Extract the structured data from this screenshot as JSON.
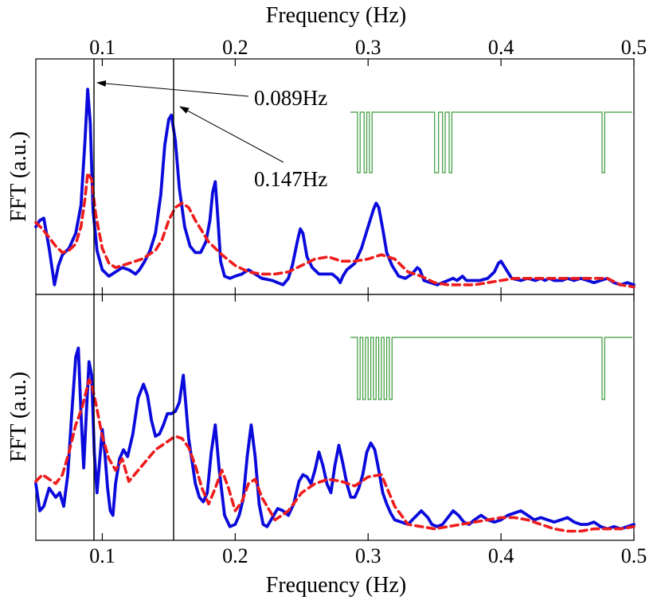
{
  "chart_data": {
    "type": "line",
    "x_axis": {
      "label": "Frequency (Hz)",
      "range": [
        0.05,
        0.5
      ],
      "ticks": [
        0.1,
        0.2,
        0.3,
        0.4,
        0.5
      ],
      "tick_labels": [
        "0.1",
        "0.2",
        "0.3",
        "0.4",
        "0.5"
      ]
    },
    "y_label": "FFT (a.u.)",
    "y_range": [
      0,
      1
    ],
    "vertical_markers": [
      0.089,
      0.147
    ],
    "colors": {
      "solid": "#0a0adc",
      "dashed": "#ee1c1c",
      "inset": "#3a9a3a",
      "axis": "#000000"
    },
    "panels": [
      {
        "name": "top",
        "annotations": [
          {
            "label": "0.089Hz",
            "point_x": 0.089,
            "point_y": 0.95,
            "text_x": 0.21,
            "text_y": 0.93
          },
          {
            "label": "0.147Hz",
            "point_x": 0.155,
            "point_y": 0.76,
            "text_x": 0.21,
            "text_y": 0.56
          }
        ],
        "inset_pulse_train": {
          "baseline": 1,
          "dips": [
            0.292,
            0.294,
            0.297,
            0.299,
            0.301,
            0.303,
            0.35,
            0.353,
            0.356,
            0.358,
            0.361,
            0.363,
            0.476,
            0.478
          ]
        },
        "series": [
          {
            "name": "solid",
            "style": "solid",
            "x": [
              0.05,
              0.053,
              0.056,
              0.06,
              0.064,
              0.067,
              0.07,
              0.075,
              0.08,
              0.084,
              0.087,
              0.089,
              0.091,
              0.093,
              0.096,
              0.1,
              0.105,
              0.11,
              0.115,
              0.12,
              0.125,
              0.128,
              0.132,
              0.136,
              0.14,
              0.144,
              0.147,
              0.15,
              0.152,
              0.155,
              0.158,
              0.162,
              0.166,
              0.17,
              0.174,
              0.178,
              0.181,
              0.183,
              0.185,
              0.187,
              0.189,
              0.192,
              0.196,
              0.2,
              0.205,
              0.21,
              0.215,
              0.22,
              0.228,
              0.232,
              0.236,
              0.24,
              0.243,
              0.247,
              0.249,
              0.251,
              0.254,
              0.258,
              0.263,
              0.268,
              0.273,
              0.277,
              0.279,
              0.281,
              0.284,
              0.29,
              0.295,
              0.3,
              0.304,
              0.306,
              0.308,
              0.311,
              0.314,
              0.318,
              0.323,
              0.328,
              0.333,
              0.337,
              0.339,
              0.342,
              0.347,
              0.352,
              0.356,
              0.36,
              0.364,
              0.367,
              0.369,
              0.371,
              0.374,
              0.378,
              0.384,
              0.39,
              0.395,
              0.398,
              0.4,
              0.403,
              0.408,
              0.415,
              0.42,
              0.426,
              0.43,
              0.433,
              0.436,
              0.44,
              0.446,
              0.45,
              0.455,
              0.46,
              0.465,
              0.47,
              0.475,
              0.48,
              0.485,
              0.49,
              0.495,
              0.5
            ],
            "y": [
              0.3,
              0.33,
              0.34,
              0.2,
              0.03,
              0.12,
              0.17,
              0.2,
              0.27,
              0.4,
              0.7,
              0.94,
              0.78,
              0.38,
              0.19,
              0.1,
              0.07,
              0.09,
              0.11,
              0.1,
              0.08,
              0.1,
              0.14,
              0.19,
              0.27,
              0.45,
              0.68,
              0.8,
              0.82,
              0.7,
              0.48,
              0.3,
              0.21,
              0.18,
              0.18,
              0.23,
              0.33,
              0.46,
              0.51,
              0.34,
              0.14,
              0.07,
              0.06,
              0.07,
              0.08,
              0.1,
              0.08,
              0.06,
              0.05,
              0.04,
              0.03,
              0.06,
              0.12,
              0.24,
              0.29,
              0.27,
              0.16,
              0.11,
              0.08,
              0.08,
              0.08,
              0.06,
              0.04,
              0.07,
              0.1,
              0.13,
              0.2,
              0.3,
              0.38,
              0.41,
              0.39,
              0.29,
              0.18,
              0.12,
              0.07,
              0.06,
              0.08,
              0.11,
              0.1,
              0.05,
              0.04,
              0.03,
              0.04,
              0.05,
              0.06,
              0.05,
              0.06,
              0.07,
              0.05,
              0.05,
              0.05,
              0.06,
              0.09,
              0.13,
              0.14,
              0.11,
              0.06,
              0.05,
              0.06,
              0.05,
              0.06,
              0.05,
              0.06,
              0.05,
              0.05,
              0.06,
              0.05,
              0.06,
              0.05,
              0.04,
              0.05,
              0.06,
              0.04,
              0.03,
              0.04,
              0.03
            ]
          },
          {
            "name": "dashed",
            "style": "dashed",
            "x": [
              0.05,
              0.055,
              0.06,
              0.065,
              0.07,
              0.075,
              0.08,
              0.084,
              0.087,
              0.089,
              0.092,
              0.095,
              0.1,
              0.105,
              0.11,
              0.115,
              0.12,
              0.13,
              0.14,
              0.145,
              0.15,
              0.155,
              0.16,
              0.165,
              0.17,
              0.18,
              0.19,
              0.2,
              0.21,
              0.22,
              0.23,
              0.24,
              0.25,
              0.26,
              0.27,
              0.28,
              0.29,
              0.3,
              0.31,
              0.32,
              0.33,
              0.34,
              0.35,
              0.36,
              0.37,
              0.38,
              0.39,
              0.4,
              0.41,
              0.42,
              0.43,
              0.44,
              0.45,
              0.46,
              0.47,
              0.48,
              0.49,
              0.5
            ],
            "y": [
              0.32,
              0.29,
              0.25,
              0.21,
              0.18,
              0.19,
              0.22,
              0.3,
              0.43,
              0.55,
              0.52,
              0.36,
              0.2,
              0.13,
              0.11,
              0.12,
              0.13,
              0.15,
              0.19,
              0.24,
              0.33,
              0.39,
              0.41,
              0.39,
              0.33,
              0.23,
              0.17,
              0.12,
              0.09,
              0.08,
              0.08,
              0.09,
              0.12,
              0.15,
              0.16,
              0.14,
              0.14,
              0.15,
              0.17,
              0.15,
              0.09,
              0.07,
              0.04,
              0.03,
              0.03,
              0.03,
              0.04,
              0.05,
              0.06,
              0.06,
              0.06,
              0.06,
              0.06,
              0.06,
              0.06,
              0.06,
              0.03,
              0.02
            ]
          }
        ]
      },
      {
        "name": "bottom",
        "annotations": [],
        "inset_pulse_train": {
          "baseline": 1,
          "dips": [
            0.292,
            0.294,
            0.296,
            0.298,
            0.3,
            0.302,
            0.304,
            0.306,
            0.308,
            0.31,
            0.312,
            0.314,
            0.316,
            0.318,
            0.476,
            0.478
          ]
        },
        "series": [
          {
            "name": "solid",
            "style": "solid",
            "x": [
              0.05,
              0.053,
              0.056,
              0.06,
              0.065,
              0.068,
              0.071,
              0.074,
              0.077,
              0.08,
              0.082,
              0.084,
              0.086,
              0.088,
              0.09,
              0.092,
              0.094,
              0.096,
              0.098,
              0.1,
              0.102,
              0.104,
              0.106,
              0.108,
              0.11,
              0.113,
              0.116,
              0.119,
              0.123,
              0.127,
              0.131,
              0.134,
              0.137,
              0.14,
              0.143,
              0.146,
              0.149,
              0.152,
              0.155,
              0.158,
              0.161,
              0.163,
              0.165,
              0.167,
              0.17,
              0.173,
              0.176,
              0.179,
              0.182,
              0.185,
              0.188,
              0.192,
              0.196,
              0.2,
              0.203,
              0.206,
              0.209,
              0.212,
              0.215,
              0.218,
              0.221,
              0.224,
              0.228,
              0.232,
              0.236,
              0.24,
              0.244,
              0.248,
              0.251,
              0.254,
              0.257,
              0.26,
              0.263,
              0.266,
              0.269,
              0.272,
              0.275,
              0.278,
              0.281,
              0.284,
              0.287,
              0.29,
              0.293,
              0.296,
              0.299,
              0.302,
              0.305,
              0.308,
              0.311,
              0.314,
              0.317,
              0.32,
              0.325,
              0.33,
              0.335,
              0.34,
              0.345,
              0.348,
              0.352,
              0.356,
              0.36,
              0.364,
              0.368,
              0.372,
              0.376,
              0.38,
              0.385,
              0.39,
              0.395,
              0.4,
              0.405,
              0.41,
              0.415,
              0.42,
              0.425,
              0.43,
              0.435,
              0.44,
              0.445,
              0.45,
              0.455,
              0.46,
              0.465,
              0.47,
              0.475,
              0.48,
              0.485,
              0.49,
              0.495,
              0.5
            ],
            "y": [
              0.24,
              0.12,
              0.14,
              0.22,
              0.18,
              0.2,
              0.14,
              0.28,
              0.55,
              0.8,
              0.84,
              0.55,
              0.31,
              0.55,
              0.78,
              0.72,
              0.38,
              0.2,
              0.34,
              0.48,
              0.37,
              0.22,
              0.12,
              0.1,
              0.24,
              0.35,
              0.39,
              0.36,
              0.46,
              0.62,
              0.68,
              0.63,
              0.52,
              0.45,
              0.46,
              0.5,
              0.55,
              0.55,
              0.56,
              0.6,
              0.72,
              0.58,
              0.44,
              0.36,
              0.24,
              0.18,
              0.16,
              0.2,
              0.38,
              0.5,
              0.3,
              0.1,
              0.05,
              0.06,
              0.1,
              0.17,
              0.36,
              0.5,
              0.36,
              0.15,
              0.06,
              0.05,
              0.09,
              0.13,
              0.12,
              0.1,
              0.15,
              0.25,
              0.28,
              0.27,
              0.24,
              0.3,
              0.38,
              0.32,
              0.24,
              0.2,
              0.32,
              0.41,
              0.33,
              0.24,
              0.18,
              0.18,
              0.22,
              0.28,
              0.38,
              0.42,
              0.39,
              0.3,
              0.2,
              0.15,
              0.11,
              0.08,
              0.07,
              0.06,
              0.09,
              0.12,
              0.09,
              0.06,
              0.05,
              0.06,
              0.09,
              0.12,
              0.1,
              0.07,
              0.06,
              0.08,
              0.1,
              0.08,
              0.07,
              0.08,
              0.1,
              0.11,
              0.12,
              0.1,
              0.08,
              0.09,
              0.08,
              0.07,
              0.08,
              0.09,
              0.07,
              0.06,
              0.06,
              0.07,
              0.05,
              0.04,
              0.05,
              0.04,
              0.05,
              0.06
            ]
          },
          {
            "name": "dashed",
            "style": "dashed",
            "x": [
              0.05,
              0.055,
              0.06,
              0.065,
              0.07,
              0.075,
              0.08,
              0.085,
              0.09,
              0.092,
              0.095,
              0.1,
              0.105,
              0.11,
              0.115,
              0.12,
              0.13,
              0.14,
              0.15,
              0.155,
              0.16,
              0.165,
              0.17,
              0.175,
              0.18,
              0.185,
              0.19,
              0.195,
              0.2,
              0.205,
              0.21,
              0.215,
              0.22,
              0.23,
              0.24,
              0.25,
              0.26,
              0.27,
              0.28,
              0.29,
              0.3,
              0.31,
              0.32,
              0.33,
              0.34,
              0.35,
              0.36,
              0.37,
              0.38,
              0.39,
              0.4,
              0.41,
              0.42,
              0.43,
              0.44,
              0.45,
              0.46,
              0.47,
              0.48,
              0.49,
              0.5
            ],
            "y": [
              0.25,
              0.28,
              0.26,
              0.24,
              0.28,
              0.38,
              0.5,
              0.58,
              0.7,
              0.68,
              0.6,
              0.45,
              0.35,
              0.3,
              0.35,
              0.25,
              0.32,
              0.39,
              0.43,
              0.45,
              0.44,
              0.4,
              0.32,
              0.22,
              0.15,
              0.22,
              0.3,
              0.22,
              0.12,
              0.16,
              0.24,
              0.26,
              0.18,
              0.08,
              0.12,
              0.2,
              0.24,
              0.26,
              0.25,
              0.23,
              0.27,
              0.28,
              0.14,
              0.06,
              0.05,
              0.04,
              0.05,
              0.06,
              0.07,
              0.08,
              0.09,
              0.09,
              0.08,
              0.06,
              0.04,
              0.03,
              0.03,
              0.04,
              0.04,
              0.04,
              0.05
            ]
          }
        ]
      }
    ]
  }
}
